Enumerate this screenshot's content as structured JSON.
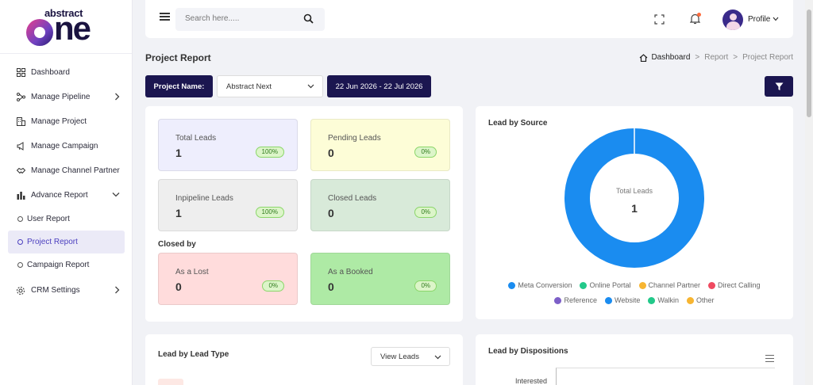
{
  "brand": {
    "top": "abstract",
    "main": "one"
  },
  "sidebar": {
    "items": [
      {
        "label": "Dashboard",
        "icon": "grid-icon"
      },
      {
        "label": "Manage Pipeline",
        "icon": "pipeline-icon"
      },
      {
        "label": "Manage Project",
        "icon": "building-icon"
      },
      {
        "label": "Manage Campaign",
        "icon": "megaphone-icon"
      },
      {
        "label": "Manage Channel Partner",
        "icon": "handshake-icon"
      },
      {
        "label": "Advance Report",
        "icon": "bar-chart-icon"
      }
    ],
    "sub_items": [
      {
        "label": "User Report"
      },
      {
        "label": "Project Report"
      },
      {
        "label": "Campaign Report"
      }
    ],
    "settings": {
      "label": "CRM Settings",
      "icon": "gear-icon"
    }
  },
  "topbar": {
    "search_placeholder": "Search here.....",
    "profile_label": "Profile"
  },
  "page": {
    "title": "Project Report",
    "breadcrumb": [
      "Dashboard",
      "Report",
      "Project Report"
    ]
  },
  "filters": {
    "project_label": "Project Name:",
    "project_value": "Abstract Next",
    "date_range": "22 Jun 2026 - 22 Jul 2026"
  },
  "stats": [
    {
      "label": "Total Leads",
      "value": "1",
      "pct": "100%",
      "bg": "#eeeefd"
    },
    {
      "label": "Pending Leads",
      "value": "0",
      "pct": "0%",
      "bg": "#fdfdd7"
    },
    {
      "label": "Inpipeline Leads",
      "value": "1",
      "pct": "100%",
      "bg": "#eeeeee"
    },
    {
      "label": "Closed Leads",
      "value": "0",
      "pct": "0%",
      "bg": "#d8ead9"
    }
  ],
  "closed_by": {
    "title": "Closed by",
    "items": [
      {
        "label": "As a Lost",
        "value": "0",
        "pct": "0%",
        "bg": "#ffdcdc"
      },
      {
        "label": "As a Booked",
        "value": "0",
        "pct": "0%",
        "bg": "#aeeaa5"
      }
    ]
  },
  "lead_source": {
    "title": "Lead by Source",
    "center_label": "Total Leads",
    "center_value": "1",
    "legend_row1": [
      {
        "label": "Meta Conversion",
        "color": "#1a8cf0"
      },
      {
        "label": "Online Portal",
        "color": "#22c98a"
      },
      {
        "label": "Channel Partner",
        "color": "#f7b531"
      },
      {
        "label": "Direct Calling",
        "color": "#ef4a60"
      }
    ],
    "legend_row2": [
      {
        "label": "Reference",
        "color": "#7d5fc8"
      },
      {
        "label": "Website",
        "color": "#1a8cf0"
      },
      {
        "label": "Walkin",
        "color": "#22c98a"
      },
      {
        "label": "Other",
        "color": "#f7b531"
      }
    ]
  },
  "chart_data": {
    "type": "pie",
    "title": "Lead by Source",
    "categories": [
      "Meta Conversion",
      "Online Portal",
      "Channel Partner",
      "Direct Calling",
      "Reference",
      "Website",
      "Walkin",
      "Other"
    ],
    "values": [
      1,
      0,
      0,
      0,
      0,
      0,
      0,
      0
    ]
  },
  "lead_type": {
    "title": "Lead by Lead Type",
    "dropdown_value": "View Leads"
  },
  "dispositions": {
    "title": "Lead by Dispositions",
    "category": "Interested"
  }
}
